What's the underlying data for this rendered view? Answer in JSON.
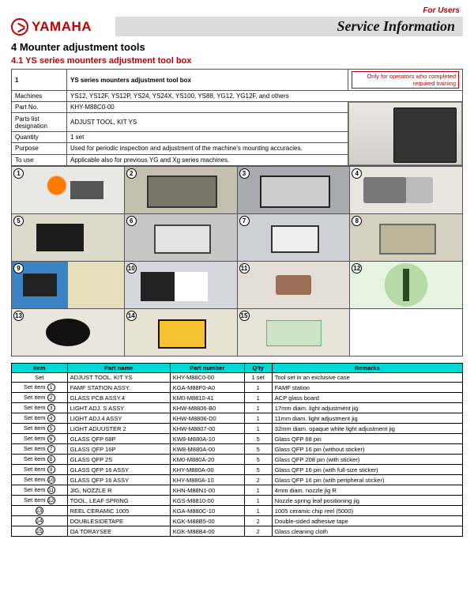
{
  "header": {
    "for_users": "For  Users",
    "logo_text": "YAMAHA",
    "svc_info": "Service Information"
  },
  "h4": "4   Mounter adjustment tools",
  "h41": "4.1    YS series mounters adjustment tool box",
  "info_table": {
    "num": "1",
    "title": "YS series mounters adjustment tool box",
    "training": "Only for operators who completed required training",
    "rows": [
      {
        "label": "Machines",
        "value": "YS12, YS12F, YS12P, YS24, YS24X, YS100, YS88, YG12, YG12F, and others"
      },
      {
        "label": "Part No.",
        "value": "KHY-M88C0-00"
      },
      {
        "label": "Parts list designation",
        "value": "ADJUST TOOL, KIT YS"
      },
      {
        "label": "Quantity",
        "value": "1 set"
      },
      {
        "label": "Purpose",
        "value": "Used for periodic inspection and adjustment of the machine's mounting accuracies."
      },
      {
        "label": "To use",
        "value": "Applicable also for previous YG and Xg series machines."
      }
    ]
  },
  "photo_numbers": [
    "1",
    "2",
    "3",
    "4",
    "5",
    "6",
    "7",
    "8",
    "9",
    "10",
    "11",
    "12",
    "13",
    "14",
    "15"
  ],
  "parts_table": {
    "headers": [
      "Item",
      "Part name",
      "Part number",
      "Q'ty",
      "Remarks"
    ],
    "rows": [
      {
        "n": "",
        "item": "Set",
        "name": "ADJUST TOOL, KIT YS",
        "pn": "KHY-M88C0-00",
        "qty": "1 set",
        "rem": "Tool set in an exclusive case"
      },
      {
        "n": "1",
        "item": "Set item",
        "name": "FAMF STATION ASSY.",
        "pn": "KGA-M88F0-A0",
        "qty": "1",
        "rem": "FAMF station"
      },
      {
        "n": "2",
        "item": "Set item",
        "name": "GLASS PCB ASSY.4",
        "pn": "KM0-M8810-41",
        "qty": "1",
        "rem": "ACP glass board"
      },
      {
        "n": "3",
        "item": "Set item",
        "name": "LIGHT ADJ. S ASSY",
        "pn": "KHW-M8806-B0",
        "qty": "1",
        "rem": "17mm diam. light adjustment jig"
      },
      {
        "n": "4",
        "item": "Set item",
        "name": "LIGHT ADJ.4 ASSY",
        "pn": "KHW-M8806-D0",
        "qty": "1",
        "rem": "11mm diam. light adjustment jig"
      },
      {
        "n": "5",
        "item": "Set item",
        "name": "LIGHT ADUUSTER 2",
        "pn": "KHW-M8807-00",
        "qty": "1",
        "rem": "32mm diam. opaque white light adjustment jig"
      },
      {
        "n": "6",
        "item": "Set item",
        "name": "GLASS QFP 68P",
        "pn": "KW8-M880A-10",
        "qty": "5",
        "rem": "Glass QFP 68 pin"
      },
      {
        "n": "7",
        "item": "Set item",
        "name": "GLASS QFP 16P",
        "pn": "KW8-M880A-00",
        "qty": "5",
        "rem": "Glass QFP 16 pin (without sticker)"
      },
      {
        "n": "8",
        "item": "Set item",
        "name": "GLASS QFP 2S",
        "pn": "KM0-M880A-20",
        "qty": "5",
        "rem": "Glass QFP 208 pin (with sticker)"
      },
      {
        "n": "9",
        "item": "Set item",
        "name": "GLASS QFP 16 ASSY",
        "pn": "KHY-M880A-00",
        "qty": "5",
        "rem": "Glass QFP 16 pin (with full-size sticker)"
      },
      {
        "n": "10",
        "item": "Set item",
        "name": "GLASS QFP 16 ASSY",
        "pn": "KHY-M880A-10",
        "qty": "2",
        "rem": "Glass QFP 16 pin (with peripheral sticker)"
      },
      {
        "n": "11",
        "item": "Set item",
        "name": "JIG, NOZZLE R",
        "pn": "KHN-M88N1-00",
        "qty": "1",
        "rem": "4mm diam. nozzle jig R"
      },
      {
        "n": "12",
        "item": "Set item",
        "name": "TOOL, LEAF SPRING",
        "pn": "KGS-M8810-00",
        "qty": "1",
        "rem": "Nozzle spring leaf positioning jig"
      },
      {
        "n": "13",
        "item": "",
        "name": "REEL CERAMIC 1005",
        "pn": "KGA-M880C-10",
        "qty": "1",
        "rem": "1005 ceramic chip reel (5000)"
      },
      {
        "n": "14",
        "item": "",
        "name": "DOUBLESIDETAPE",
        "pn": "KGK-M88B5-00",
        "qty": "2",
        "rem": "Double-sided adhesive tape"
      },
      {
        "n": "15",
        "item": "",
        "name": "OA TORAYSEE",
        "pn": "KGK-M88B4-00",
        "qty": "2",
        "rem": "Glass cleaning cloth"
      }
    ]
  }
}
